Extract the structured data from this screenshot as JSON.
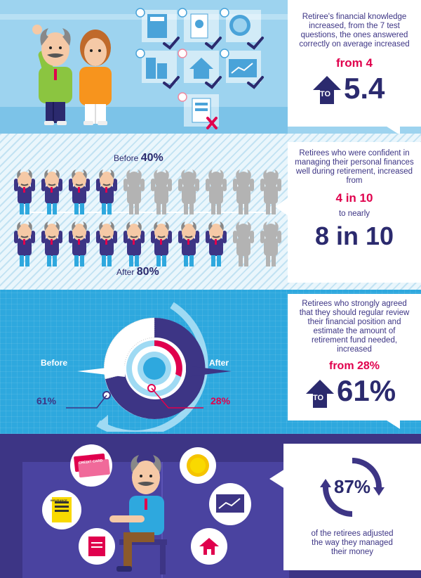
{
  "knowledge": {
    "text": "Retiree's financial knowledge increased, from the 7 test questions, the ones answered correctly on average increased",
    "from_label": "from 4",
    "to_label": "TO",
    "to_value": "5.4"
  },
  "confidence": {
    "text": "Retirees who were confident in managing their personal finances well during retirement, increased from",
    "from_label": "4 in 10",
    "mid_label": "to nearly",
    "to_value": "8 in 10",
    "before_label": "Before",
    "before_pct": "40%",
    "after_label": "After",
    "after_pct": "80%"
  },
  "review": {
    "text": "Retirees who strongly agreed that they should regular review their financial position and estimate the amount of retirement fund needed, increased",
    "from_label": "from 28%",
    "to_label": "TO",
    "to_value": "61%",
    "before_label": "Before",
    "after_label": "After",
    "left_pct": "61%",
    "right_pct": "28%"
  },
  "adjusted": {
    "pct": "87%",
    "text": "of the retirees adjusted the way they managed their money"
  },
  "icons": {
    "credit_card": "CREDIT CARD",
    "insurance": "INSURANCE"
  },
  "colors": {
    "navy": "#3d3585",
    "pink": "#e0004d",
    "sky": "#2ea8de"
  }
}
